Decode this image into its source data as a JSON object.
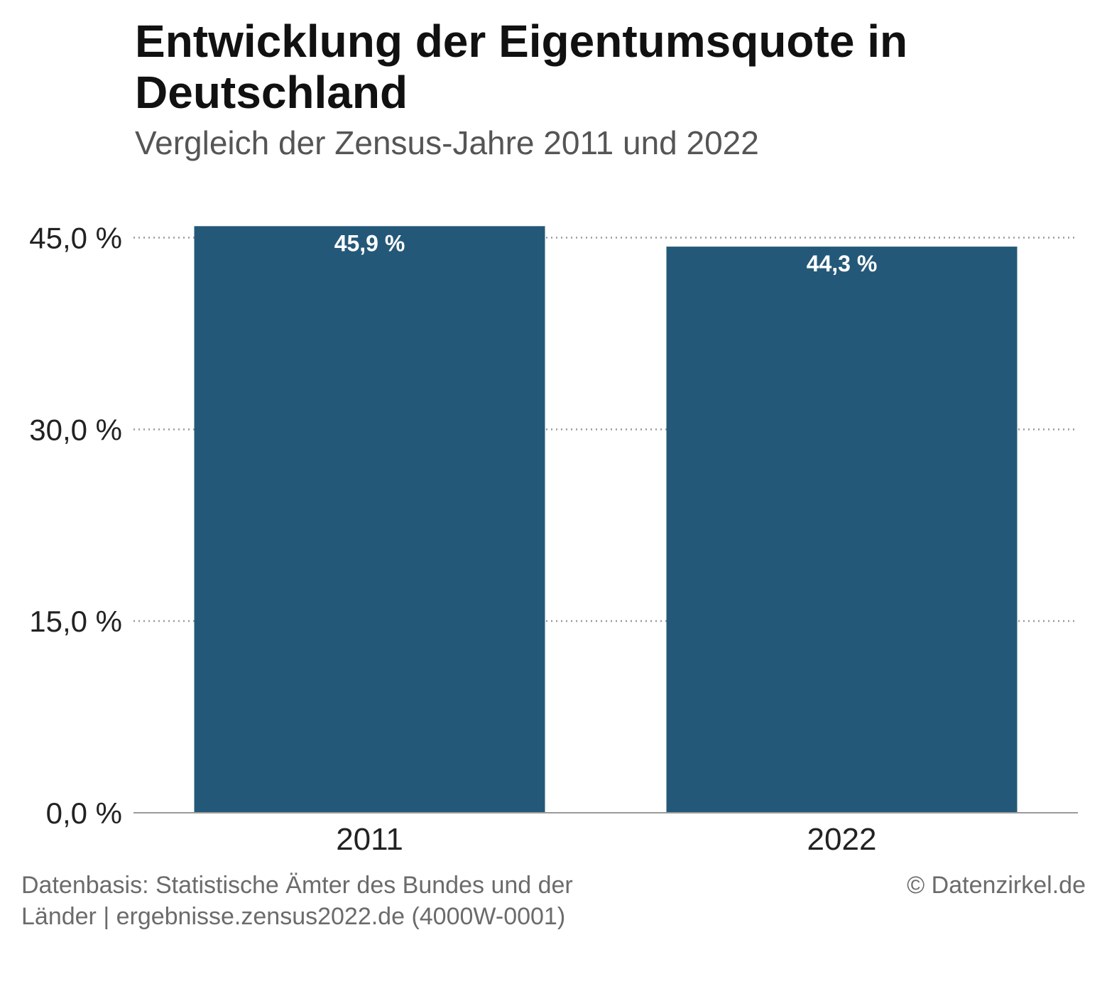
{
  "header": {
    "title": "Entwicklung der Eigentumsquote in Deutschland",
    "subtitle": "Vergleich der Zensus-Jahre 2011 und 2022"
  },
  "footer": {
    "source": "Datenbasis: Statistische Ämter des Bundes und der Länder | ergebnisse.zensus2022.de (4000W-0001)",
    "credit": "© Datenzirkel.de"
  },
  "chart_data": {
    "type": "bar",
    "title": "Entwicklung der Eigentumsquote in Deutschland",
    "subtitle": "Vergleich der Zensus-Jahre 2011 und 2022",
    "xlabel": "",
    "ylabel": "",
    "categories": [
      "2011",
      "2022"
    ],
    "values": [
      45.9,
      44.3
    ],
    "value_labels": [
      "45,9 %",
      "44,3 %"
    ],
    "ylim": [
      0,
      45.9
    ],
    "y_ticks": [
      0,
      15,
      30,
      45
    ],
    "y_tick_labels": [
      "0,0 %",
      "15,0 %",
      "30,0 %",
      "45,0 %"
    ],
    "grid": "horizontal-dotted",
    "legend": "none",
    "colors": {
      "bar": "#245878",
      "grid": "#9a9a9a",
      "axis": "#9a9a9a",
      "bar_label": "#ffffff",
      "tick_label": "#222222"
    }
  }
}
